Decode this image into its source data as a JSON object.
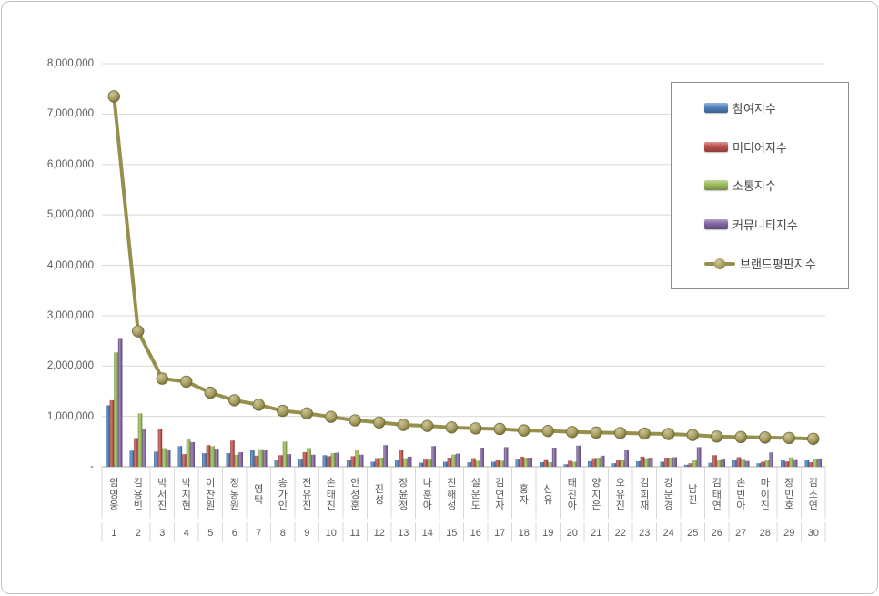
{
  "chart_data": {
    "type": "bar+line",
    "title": "",
    "categories": [
      "임영웅",
      "김용빈",
      "박서진",
      "박지현",
      "이찬원",
      "정동원",
      "영탁",
      "송가인",
      "전유진",
      "손태진",
      "안성훈",
      "진성",
      "장윤정",
      "나훈아",
      "진해성",
      "설운도",
      "김연자",
      "홍자",
      "신유",
      "태진아",
      "양지은",
      "오유진",
      "김희재",
      "강문경",
      "남진",
      "김태연",
      "손빈아",
      "마이진",
      "장민호",
      "김소연"
    ],
    "ranks": [
      "1",
      "2",
      "3",
      "4",
      "5",
      "6",
      "7",
      "8",
      "9",
      "10",
      "11",
      "12",
      "13",
      "14",
      "15",
      "16",
      "17",
      "18",
      "19",
      "20",
      "21",
      "22",
      "23",
      "24",
      "25",
      "26",
      "27",
      "28",
      "29",
      "30"
    ],
    "series": [
      {
        "name": "참여지수",
        "type": "bar",
        "color": "#4F81BD",
        "values": [
          1220000,
          320000,
          300000,
          410000,
          270000,
          270000,
          330000,
          130000,
          160000,
          230000,
          140000,
          100000,
          130000,
          80000,
          100000,
          90000,
          100000,
          160000,
          90000,
          50000,
          110000,
          70000,
          110000,
          100000,
          40000,
          80000,
          130000,
          70000,
          130000,
          140000
        ]
      },
      {
        "name": "미디어지수",
        "type": "bar",
        "color": "#C0504D",
        "values": [
          1320000,
          570000,
          750000,
          250000,
          430000,
          520000,
          220000,
          230000,
          290000,
          210000,
          210000,
          170000,
          330000,
          160000,
          180000,
          170000,
          140000,
          200000,
          150000,
          120000,
          170000,
          130000,
          200000,
          180000,
          70000,
          230000,
          190000,
          100000,
          105000,
          90000
        ]
      },
      {
        "name": "소통지수",
        "type": "bar",
        "color": "#9BBB59",
        "values": [
          2270000,
          1060000,
          370000,
          540000,
          410000,
          240000,
          350000,
          500000,
          370000,
          270000,
          330000,
          180000,
          170000,
          160000,
          240000,
          120000,
          120000,
          180000,
          90000,
          100000,
          180000,
          140000,
          170000,
          180000,
          130000,
          130000,
          155000,
          125000,
          185000,
          160000
        ]
      },
      {
        "name": "커뮤니티지수",
        "type": "bar",
        "color": "#8064A2",
        "values": [
          2540000,
          740000,
          330000,
          490000,
          360000,
          290000,
          330000,
          250000,
          240000,
          280000,
          240000,
          430000,
          200000,
          410000,
          260000,
          380000,
          390000,
          180000,
          380000,
          420000,
          220000,
          330000,
          180000,
          190000,
          390000,
          160000,
          115000,
          285000,
          150000,
          165000
        ]
      },
      {
        "name": "브랜드평판지수",
        "type": "line",
        "color": "#97904C",
        "marker_light": "#CCC49A",
        "marker_mid": "#A79E5F",
        "marker_dark": "#6B6434",
        "values": [
          7350000,
          2690000,
          1750000,
          1690000,
          1470000,
          1320000,
          1230000,
          1110000,
          1060000,
          990000,
          920000,
          880000,
          830000,
          810000,
          780000,
          760000,
          750000,
          720000,
          710000,
          690000,
          680000,
          670000,
          660000,
          650000,
          630000,
          600000,
          590000,
          580000,
          570000,
          555000
        ]
      }
    ],
    "ylim": [
      0,
      8000000
    ],
    "ytick_labels": [
      "-",
      "1,000,000",
      "2,000,000",
      "3,000,000",
      "4,000,000",
      "5,000,000",
      "6,000,000",
      "7,000,000",
      "8,000,000"
    ],
    "grid": true,
    "legend_position": "top-right",
    "axis_colors": {
      "gridline": "#D9D9D9",
      "axis_line": "#BFBFBF",
      "tick_separator": "#D9D9D9",
      "label_text": "#595959"
    }
  }
}
